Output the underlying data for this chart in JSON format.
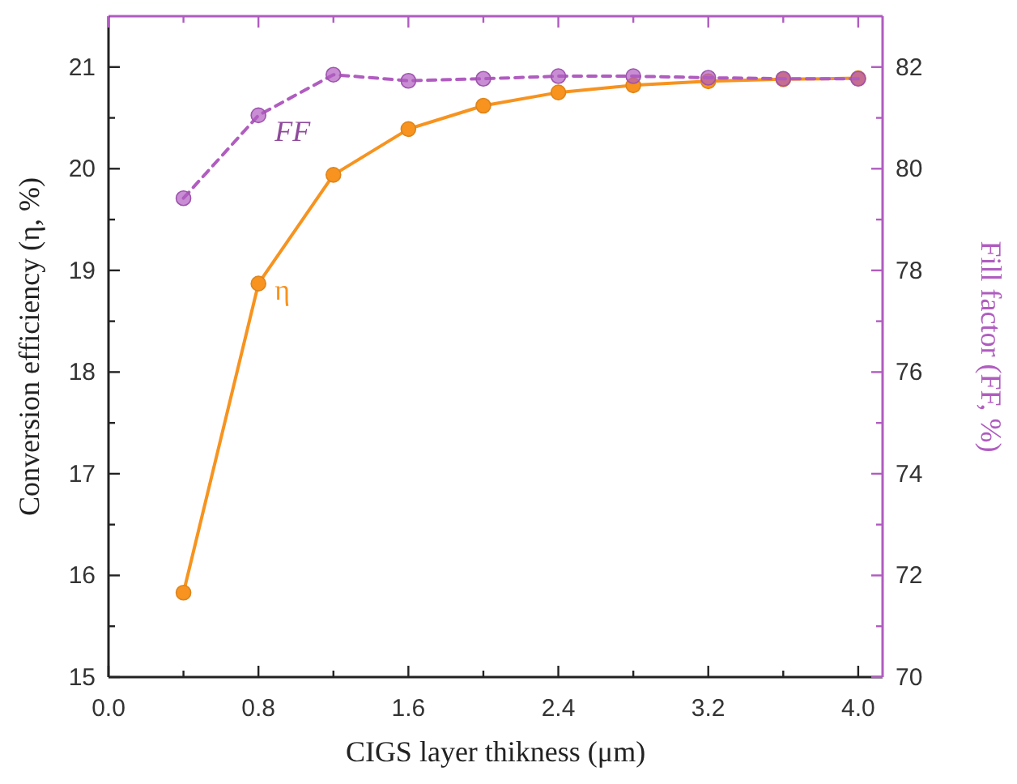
{
  "chart_data": {
    "type": "line",
    "xlabel": "CIGS layer thikness (μm)",
    "ylabel": "Conversion efficiency (η, %)",
    "y2label": "Fill factor (FF, %)",
    "x": [
      0.4,
      0.8,
      1.2,
      1.6,
      2.0,
      2.4,
      2.8,
      3.2,
      3.6,
      4.0
    ],
    "xlim": [
      0,
      4.13
    ],
    "xticks": [
      {
        "value": 0,
        "label": "0.0"
      },
      {
        "value": 0.4,
        "label": null
      },
      {
        "value": 0.8,
        "label": "0.8"
      },
      {
        "value": 1.2,
        "label": null
      },
      {
        "value": 1.6,
        "label": "1.6"
      },
      {
        "value": 2.0,
        "label": null
      },
      {
        "value": 2.4,
        "label": "2.4"
      },
      {
        "value": 2.8,
        "label": null
      },
      {
        "value": 3.2,
        "label": "3.2"
      },
      {
        "value": 3.6,
        "label": null
      },
      {
        "value": 4.0,
        "label": "4.0"
      }
    ],
    "ylim": [
      15,
      21.5
    ],
    "yticks": [
      15,
      {
        "value": 15.5,
        "label": null
      },
      16,
      {
        "value": 16.5,
        "label": null
      },
      17,
      {
        "value": 17.5,
        "label": null
      },
      18,
      {
        "value": 18.5,
        "label": null
      },
      19,
      {
        "value": 19.5,
        "label": null
      },
      20,
      {
        "value": 20.5,
        "label": null
      },
      21
    ],
    "y2lim": [
      70,
      83
    ],
    "y2ticks": [
      70,
      {
        "value": 71,
        "label": null
      },
      72,
      {
        "value": 73,
        "label": null
      },
      74,
      {
        "value": 75,
        "label": null
      },
      76,
      {
        "value": 77,
        "label": null
      },
      78,
      {
        "value": 79,
        "label": null
      },
      80,
      {
        "value": 81,
        "label": null
      },
      82
    ],
    "marker": "circle",
    "grid": false,
    "series": [
      {
        "name": "η",
        "color": "#f7931e",
        "line_style": "solid",
        "values": [
          15.83,
          18.87,
          19.94,
          20.39,
          20.62,
          20.75,
          20.82,
          20.86,
          20.88,
          20.89
        ]
      },
      {
        "name": "FF",
        "color": "#b05cc0",
        "line_style": "dashed",
        "axis": "y2",
        "values": [
          79.42,
          81.05,
          81.85,
          81.73,
          81.77,
          81.82,
          81.82,
          81.79,
          81.77,
          81.77
        ]
      }
    ]
  }
}
